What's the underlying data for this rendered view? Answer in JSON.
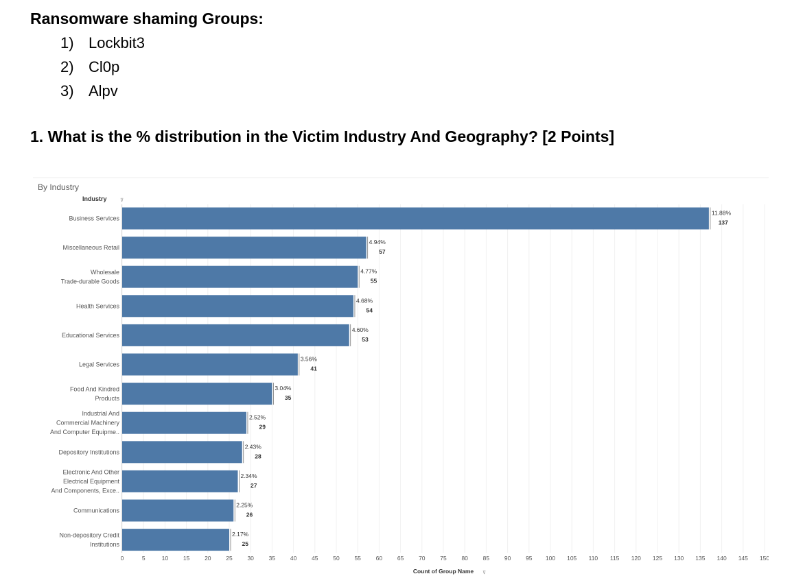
{
  "document": {
    "heading": "Ransomware shaming Groups:",
    "groups": [
      {
        "num": "1)",
        "name": "Lockbit3"
      },
      {
        "num": "2)",
        "name": "Cl0p"
      },
      {
        "num": "3)",
        "name": "Alpv"
      }
    ],
    "question": "1. What is the % distribution in the Victim Industry And Geography? [2 Points]"
  },
  "chart_data": {
    "type": "bar",
    "orientation": "horizontal",
    "title": "By Industry",
    "category_header": "Industry",
    "xlabel": "Count of Group Name",
    "xlim": [
      0,
      150
    ],
    "xticks": [
      0,
      5,
      10,
      15,
      20,
      25,
      30,
      35,
      40,
      45,
      50,
      55,
      60,
      65,
      70,
      75,
      80,
      85,
      90,
      95,
      100,
      105,
      110,
      115,
      120,
      125,
      130,
      135,
      140,
      145,
      150
    ],
    "grid": "vertical",
    "bar_color": "#4e79a7",
    "categories": [
      [
        "Business Services"
      ],
      [
        "Miscellaneous Retail"
      ],
      [
        "Wholesale",
        "Trade-durable Goods"
      ],
      [
        "Health Services"
      ],
      [
        "Educational Services"
      ],
      [
        "Legal Services"
      ],
      [
        "Food And Kindred",
        "Products"
      ],
      [
        "Industrial And",
        "Commercial Machinery",
        "And Computer Equipme.."
      ],
      [
        "Depository Institutions"
      ],
      [
        "Electronic And Other",
        "Electrical Equipment",
        "And Components, Exce.."
      ],
      [
        "Communications"
      ],
      [
        "Non-depository Credit",
        "Institutions"
      ]
    ],
    "values": [
      137,
      57,
      55,
      54,
      53,
      41,
      35,
      29,
      28,
      27,
      26,
      25
    ],
    "percent_labels": [
      "11.88%",
      "4.94%",
      "4.77%",
      "4.68%",
      "4.60%",
      "3.56%",
      "3.04%",
      "2.52%",
      "2.43%",
      "2.34%",
      "2.25%",
      "2.17%"
    ]
  }
}
